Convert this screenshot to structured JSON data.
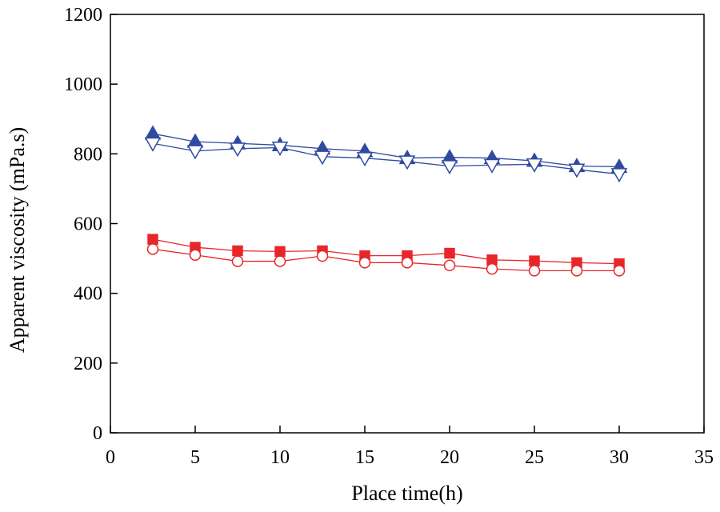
{
  "chart_data": {
    "type": "line",
    "title": "",
    "xlabel": "Place time(h)",
    "ylabel": "Apparent viscosity (mPa.s)",
    "xlim": [
      0,
      35
    ],
    "ylim": [
      0,
      1200
    ],
    "xticks": [
      0,
      5,
      10,
      15,
      20,
      25,
      30,
      35
    ],
    "yticks": [
      0,
      200,
      400,
      600,
      800,
      1000,
      1200
    ],
    "x": [
      2.5,
      5,
      7.5,
      10,
      12.5,
      15,
      17.5,
      20,
      22.5,
      25,
      27.5,
      30
    ],
    "series": [
      {
        "name": "filled-triangle-up",
        "marker": "triangle-up",
        "filled": true,
        "color": "#2f4aa0",
        "values": [
          858,
          835,
          830,
          825,
          815,
          808,
          788,
          790,
          788,
          780,
          765,
          763
        ]
      },
      {
        "name": "open-triangle-down",
        "marker": "triangle-down",
        "filled": false,
        "color": "#2f4aa0",
        "values": [
          830,
          808,
          815,
          818,
          792,
          788,
          778,
          765,
          768,
          770,
          755,
          742
        ]
      },
      {
        "name": "filled-square",
        "marker": "square",
        "filled": true,
        "color": "#e8262a",
        "values": [
          555,
          532,
          522,
          520,
          522,
          508,
          508,
          515,
          496,
          493,
          488,
          485
        ]
      },
      {
        "name": "open-circle",
        "marker": "circle",
        "filled": false,
        "color": "#e8262a",
        "values": [
          527,
          510,
          492,
          492,
          507,
          488,
          488,
          480,
          470,
          465,
          465,
          465
        ]
      }
    ]
  }
}
